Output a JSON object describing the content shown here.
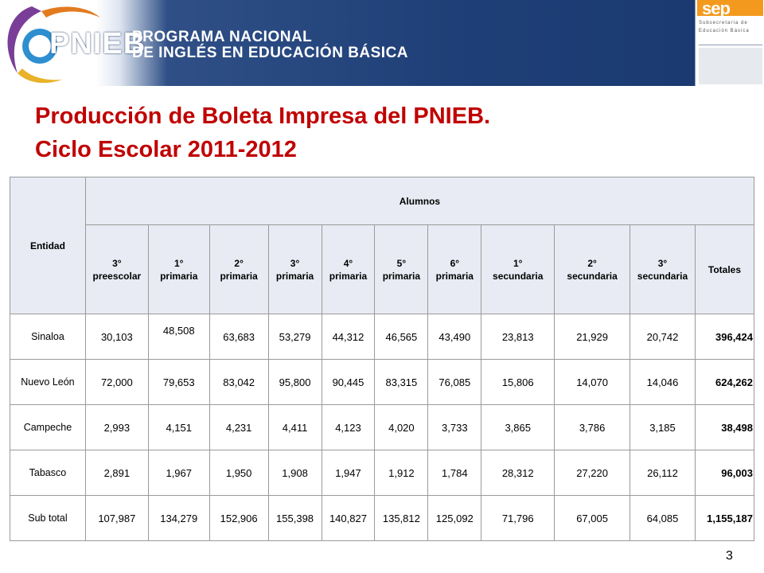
{
  "header": {
    "logo_text": "PNIEB",
    "program_line1": "PROGRAMA NACIONAL",
    "program_line2": "DE INGLÉS EN EDUCACIÓN BÁSICA",
    "sep_logo_text": "sep",
    "sep_sub1": "Subsecretaría de",
    "sep_sub2": "Educación Básica",
    "colors": {
      "banner": "#1f3f78",
      "sep_orange": "#f39a1e",
      "title_red": "#c00000"
    }
  },
  "title": {
    "line1": "Producción de Boleta Impresa del PNIEB.",
    "line2": "Ciclo Escolar 2011-2012"
  },
  "table": {
    "entidad_header": "Entidad",
    "group_header": "Alumnos",
    "columns": [
      {
        "l1": "3°",
        "l2": "preescolar"
      },
      {
        "l1": "1°",
        "l2": "primaria"
      },
      {
        "l1": "2°",
        "l2": "primaria"
      },
      {
        "l1": "3°",
        "l2": "primaria"
      },
      {
        "l1": "4°",
        "l2": "primaria"
      },
      {
        "l1": "5°",
        "l2": "primaria"
      },
      {
        "l1": "6°",
        "l2": "primaria"
      },
      {
        "l1": "1°",
        "l2": "secundaria"
      },
      {
        "l1": "2°",
        "l2": "secundaria"
      },
      {
        "l1": "3°",
        "l2": "secundaria"
      }
    ],
    "totals_header": "Totales",
    "rows": [
      {
        "entidad": "Sinaloa",
        "values": [
          "30,103",
          "48,508",
          "63,683",
          "53,279",
          "44,312",
          "46,565",
          "43,490",
          "23,813",
          "21,929",
          "20,742"
        ],
        "total": "396,424"
      },
      {
        "entidad": "Nuevo León",
        "values": [
          "72,000",
          "79,653",
          "83,042",
          "95,800",
          "90,445",
          "83,315",
          "76,085",
          "15,806",
          "14,070",
          "14,046"
        ],
        "total": "624,262"
      },
      {
        "entidad": "Campeche",
        "values": [
          "2,993",
          "4,151",
          "4,231",
          "4,411",
          "4,123",
          "4,020",
          "3,733",
          "3,865",
          "3,786",
          "3,185"
        ],
        "total": "38,498"
      },
      {
        "entidad": "Tabasco",
        "values": [
          "2,891",
          "1,967",
          "1,950",
          "1,908",
          "1,947",
          "1,912",
          "1,784",
          "28,312",
          "27,220",
          "26,112"
        ],
        "total": "96,003"
      },
      {
        "entidad": "Sub total",
        "values": [
          "107,987",
          "134,279",
          "152,906",
          "155,398",
          "140,827",
          "135,812",
          "125,092",
          "71,796",
          "67,005",
          "64,085"
        ],
        "total": "1,155,187"
      }
    ]
  },
  "footer": {
    "page_number": "3"
  }
}
